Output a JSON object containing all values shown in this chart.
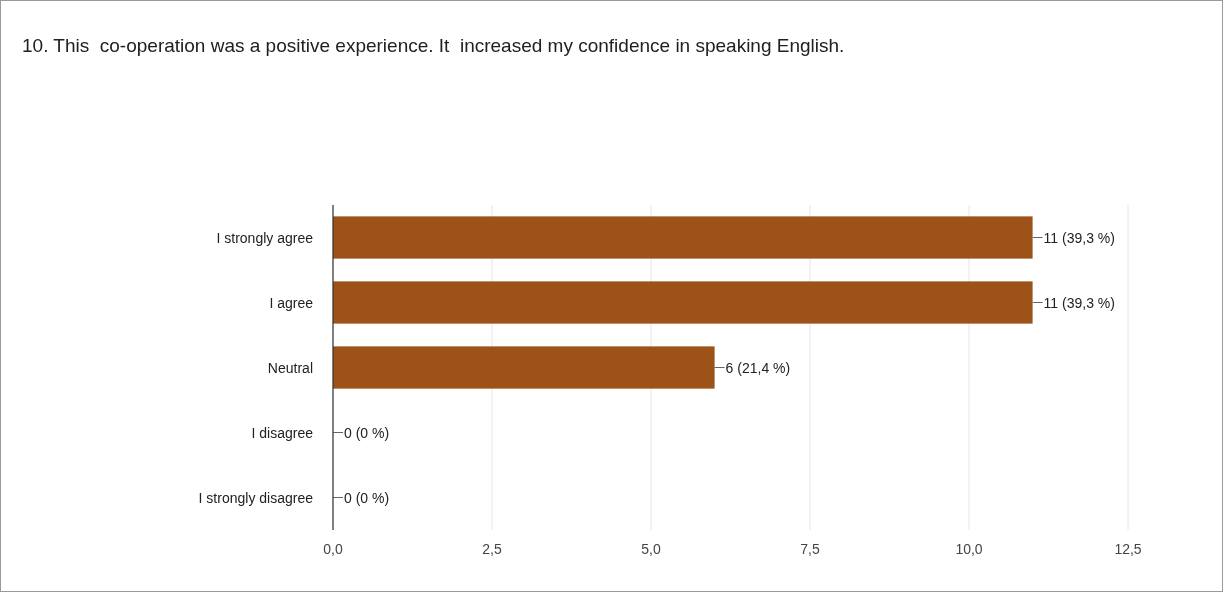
{
  "chart_data": {
    "type": "bar",
    "orientation": "horizontal",
    "title": "10. This  co-operation was a positive experience. It  increased my confidence in speaking English.",
    "categories": [
      "I strongly agree",
      "I agree",
      "Neutral",
      "I disagree",
      "I strongly disagree"
    ],
    "values": [
      11,
      11,
      6,
      0,
      0
    ],
    "value_labels": [
      "11 (39,3 %)",
      "11 (39,3 %)",
      "6 (21,4 %)",
      "0 (0 %)",
      "0 (0 %)"
    ],
    "color": "#9c5219",
    "xlim": [
      0,
      12.5
    ],
    "xticks": [
      {
        "value": 0,
        "label": "0,0"
      },
      {
        "value": 2.5,
        "label": "2,5"
      },
      {
        "value": 5,
        "label": "5,0"
      },
      {
        "value": 7.5,
        "label": "7,5"
      },
      {
        "value": 10,
        "label": "10,0"
      },
      {
        "value": 12.5,
        "label": "12,5"
      }
    ],
    "grid": "x"
  }
}
